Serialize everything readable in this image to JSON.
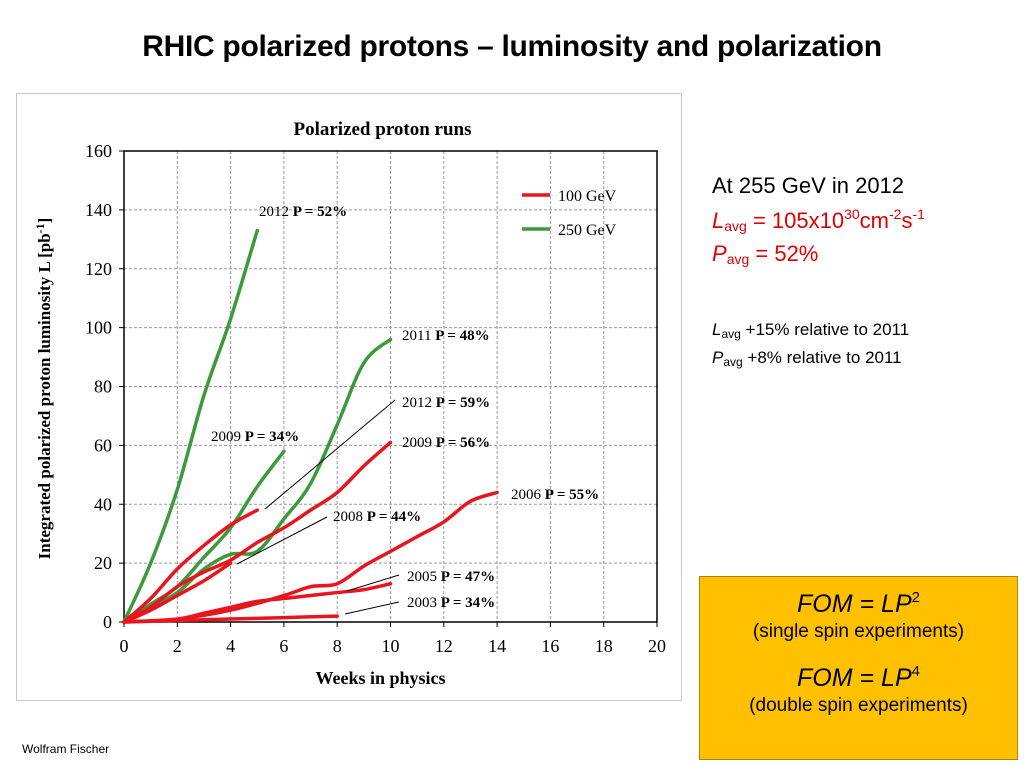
{
  "slide": {
    "title": "RHIC polarized protons – luminosity and polarization",
    "author": "Wolfram Fischer"
  },
  "info": {
    "line1": "At 255 GeV in 2012",
    "l_sym": "L",
    "l_sub": "avg",
    "l_val": " = 105x10",
    "l_exp": "30",
    "l_unit1": "cm",
    "l_unit1_exp": "-2",
    "l_unit2": "s",
    "l_unit2_exp": "-1",
    "p_sym": "P",
    "p_sub": "avg",
    "p_val": " = 52%",
    "rel_l_sym": "L",
    "rel_l_sub": "avg",
    "rel_l_text": " +15% relative to 2011",
    "rel_p_sym": "P",
    "rel_p_sub": "avg",
    "rel_p_text": " +8%   relative to 2011"
  },
  "fom": {
    "line1_main": "FOM = LP",
    "line1_exp": "2",
    "line1_desc": "(single spin experiments)",
    "line2_main": "FOM = LP",
    "line2_exp": "4",
    "line2_desc": "(double spin experiments)",
    "color": "#ffc000"
  },
  "chart_data": {
    "type": "line",
    "title": "Polarized proton runs",
    "xlabel": "Weeks in physics",
    "ylabel": "Integrated polarized proton luminosity L [pb",
    "ylabel_exp": "-1",
    "ylabel_end": "]",
    "xlim": [
      0,
      20
    ],
    "ylim": [
      0,
      160
    ],
    "xticks": [
      "0",
      "2",
      "4",
      "6",
      "8",
      "10",
      "12",
      "14",
      "16",
      "18",
      "20"
    ],
    "yticks": [
      "0",
      "20",
      "40",
      "60",
      "80",
      "100",
      "120",
      "140",
      "160"
    ],
    "grid": true,
    "legend_position": "top-right",
    "legend": [
      {
        "name": "100 GeV",
        "color": "#e8141e"
      },
      {
        "name": "250 GeV",
        "color": "#3c9a3c"
      }
    ],
    "series": [
      {
        "year": "2012",
        "p": "P = 52%",
        "energy": "250 GeV",
        "color": "#3c9a3c",
        "x": [
          0,
          1,
          2,
          3,
          4,
          5
        ],
        "y": [
          0,
          20,
          45,
          77,
          103,
          133
        ]
      },
      {
        "year": "2011",
        "p": "P = 48%",
        "energy": "250 GeV",
        "color": "#3c9a3c",
        "x": [
          0,
          1,
          2,
          3,
          4,
          5,
          6,
          7,
          8,
          9,
          10
        ],
        "y": [
          0,
          5,
          10,
          18,
          23,
          24,
          35,
          47,
          67,
          88,
          96
        ]
      },
      {
        "year": "2009",
        "p": "P = 34%",
        "energy": "250 GeV",
        "color": "#3c9a3c",
        "x": [
          0,
          1,
          2,
          3,
          4,
          5,
          6
        ],
        "y": [
          0,
          6,
          12,
          22,
          32,
          46,
          58
        ]
      },
      {
        "year": "2012",
        "p": "P = 59%",
        "energy": "100 GeV",
        "color": "#e8141e",
        "x": [
          0,
          1,
          2,
          3,
          4,
          5
        ],
        "y": [
          0,
          8,
          18,
          26,
          33,
          38
        ]
      },
      {
        "year": "2009",
        "p": "P = 56%",
        "energy": "100 GeV",
        "color": "#e8141e",
        "x": [
          0,
          1,
          2,
          3,
          4,
          5,
          6,
          7,
          8,
          9,
          10
        ],
        "y": [
          0,
          5,
          12,
          17,
          21,
          27,
          32,
          38,
          44,
          53,
          61
        ]
      },
      {
        "year": "2008",
        "p": "P = 44%",
        "energy": "100 GeV",
        "color": "#e8141e",
        "x": [
          0,
          1,
          2,
          3,
          4
        ],
        "y": [
          0,
          4,
          9,
          14,
          20
        ]
      },
      {
        "year": "2006",
        "p": "P = 55%",
        "energy": "100 GeV",
        "color": "#e8141e",
        "x": [
          0,
          2,
          4,
          6,
          7,
          8,
          9,
          10,
          11,
          12,
          13,
          14
        ],
        "y": [
          0,
          1,
          4,
          9,
          12,
          13,
          19,
          24,
          29,
          34,
          41,
          44
        ]
      },
      {
        "year": "2005",
        "p": "P = 47%",
        "energy": "100 GeV",
        "color": "#e8141e",
        "x": [
          0,
          2,
          3,
          4,
          5,
          6,
          7,
          8,
          9,
          10
        ],
        "y": [
          0,
          1,
          3,
          5,
          7,
          8,
          9,
          10,
          11,
          13
        ]
      },
      {
        "year": "2003",
        "p": "P = 34%",
        "energy": "100 GeV",
        "color": "#e8141e",
        "x": [
          0,
          2,
          4,
          6,
          8
        ],
        "y": [
          0,
          0.5,
          1,
          1.5,
          2
        ]
      }
    ]
  }
}
